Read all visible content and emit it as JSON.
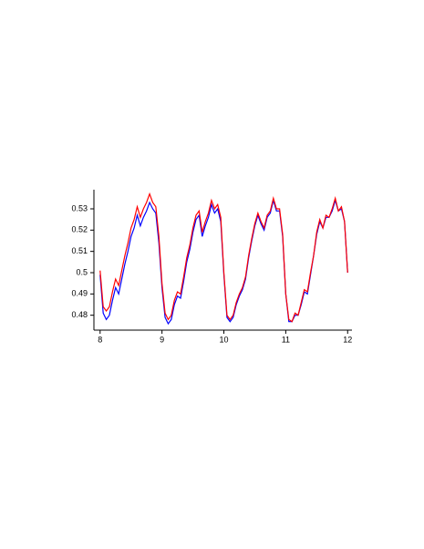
{
  "chart_data": {
    "type": "line",
    "x": [
      8,
      8.05,
      8.1,
      8.15,
      8.2,
      8.25,
      8.3,
      8.35,
      8.4,
      8.45,
      8.5,
      8.55,
      8.6,
      8.65,
      8.7,
      8.75,
      8.8,
      8.85,
      8.9,
      8.95,
      9,
      9.05,
      9.1,
      9.15,
      9.2,
      9.25,
      9.3,
      9.35,
      9.4,
      9.45,
      9.5,
      9.55,
      9.6,
      9.65,
      9.7,
      9.75,
      9.8,
      9.85,
      9.9,
      9.95,
      10,
      10.05,
      10.1,
      10.15,
      10.2,
      10.25,
      10.3,
      10.35,
      10.4,
      10.45,
      10.5,
      10.55,
      10.6,
      10.65,
      10.7,
      10.75,
      10.8,
      10.85,
      10.9,
      10.95,
      11,
      11.05,
      11.1,
      11.15,
      11.2,
      11.25,
      11.3,
      11.35,
      11.4,
      11.45,
      11.5,
      11.55,
      11.6,
      11.65,
      11.7,
      11.75,
      11.8,
      11.85,
      11.9,
      11.95,
      12
    ],
    "series": [
      {
        "color": "#0000ff",
        "values": [
          0.499,
          0.481,
          0.478,
          0.48,
          0.487,
          0.493,
          0.49,
          0.497,
          0.504,
          0.51,
          0.517,
          0.521,
          0.527,
          0.522,
          0.526,
          0.529,
          0.533,
          0.53,
          0.528,
          0.514,
          0.493,
          0.479,
          0.476,
          0.478,
          0.485,
          0.489,
          0.488,
          0.496,
          0.505,
          0.511,
          0.519,
          0.525,
          0.527,
          0.517,
          0.522,
          0.526,
          0.532,
          0.528,
          0.53,
          0.524,
          0.499,
          0.479,
          0.477,
          0.479,
          0.485,
          0.489,
          0.492,
          0.497,
          0.507,
          0.515,
          0.522,
          0.527,
          0.523,
          0.52,
          0.526,
          0.528,
          0.534,
          0.529,
          0.529,
          0.517,
          0.49,
          0.477,
          0.477,
          0.48,
          0.48,
          0.485,
          0.491,
          0.49,
          0.499,
          0.508,
          0.518,
          0.524,
          0.521,
          0.526,
          0.526,
          0.529,
          0.534,
          0.529,
          0.53,
          0.524,
          0.5
        ]
      },
      {
        "color": "#ff0000",
        "values": [
          0.501,
          0.484,
          0.482,
          0.484,
          0.491,
          0.497,
          0.494,
          0.501,
          0.508,
          0.514,
          0.521,
          0.525,
          0.531,
          0.526,
          0.53,
          0.533,
          0.537,
          0.533,
          0.531,
          0.517,
          0.495,
          0.481,
          0.478,
          0.48,
          0.487,
          0.491,
          0.49,
          0.498,
          0.507,
          0.513,
          0.521,
          0.527,
          0.529,
          0.519,
          0.524,
          0.528,
          0.534,
          0.53,
          0.532,
          0.526,
          0.5,
          0.48,
          0.478,
          0.48,
          0.486,
          0.49,
          0.493,
          0.498,
          0.508,
          0.516,
          0.523,
          0.528,
          0.524,
          0.521,
          0.527,
          0.529,
          0.535,
          0.53,
          0.53,
          0.518,
          0.49,
          0.478,
          0.477,
          0.481,
          0.48,
          0.486,
          0.492,
          0.491,
          0.5,
          0.508,
          0.519,
          0.525,
          0.521,
          0.527,
          0.526,
          0.53,
          0.535,
          0.529,
          0.531,
          0.524,
          0.5
        ]
      }
    ],
    "xlim": [
      7.9,
      12.07
    ],
    "ylim": [
      0.473,
      0.539
    ],
    "xticks": [
      8,
      9,
      10,
      11,
      12
    ],
    "yticks": [
      0.48,
      0.49,
      0.5,
      0.51,
      0.52,
      0.53
    ]
  }
}
